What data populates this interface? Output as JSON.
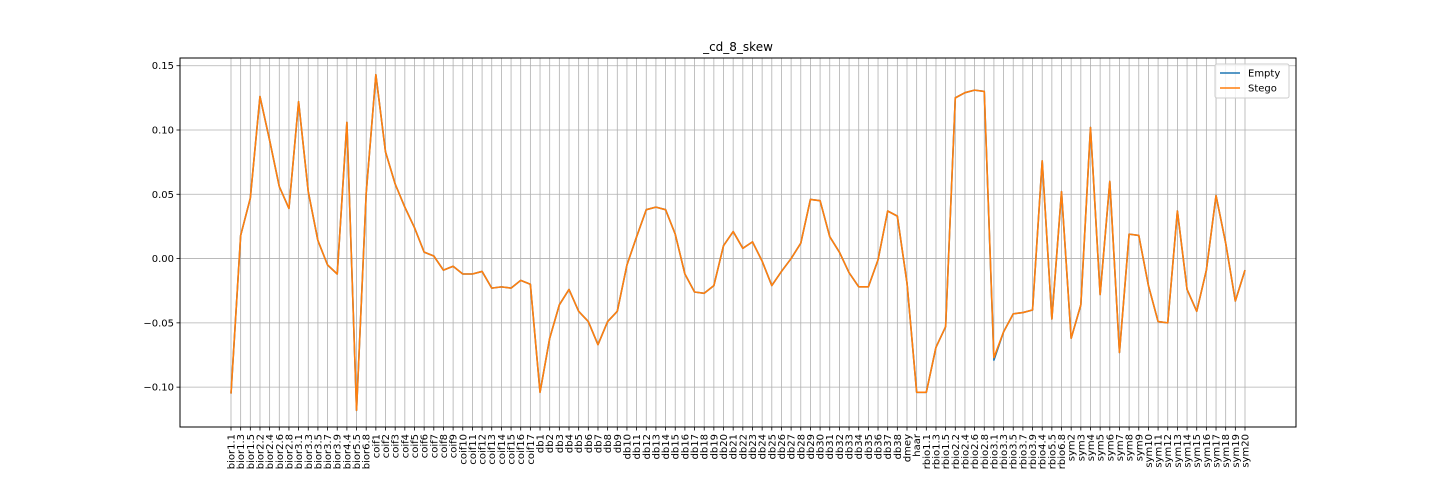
{
  "chart_data": {
    "type": "line",
    "title": "_cd_8_skew",
    "xlabel": "",
    "ylabel": "",
    "ylim": [
      -0.131,
      0.156
    ],
    "yticks": [
      -0.1,
      -0.05,
      0.0,
      0.05,
      0.1,
      0.15
    ],
    "ytick_labels": [
      "−0.10",
      "−0.05",
      "0.00",
      "0.05",
      "0.10",
      "0.15"
    ],
    "grid": true,
    "legend_position": "top-right",
    "categories": [
      "bior1.1",
      "bior1.3",
      "bior1.5",
      "bior2.2",
      "bior2.4",
      "bior2.6",
      "bior2.8",
      "bior3.1",
      "bior3.3",
      "bior3.5",
      "bior3.7",
      "bior3.9",
      "bior4.4",
      "bior5.5",
      "bior6.8",
      "coif1",
      "coif2",
      "coif3",
      "coif4",
      "coif5",
      "coif6",
      "coif7",
      "coif8",
      "coif9",
      "coif10",
      "coif11",
      "coif12",
      "coif13",
      "coif14",
      "coif15",
      "coif16",
      "coif17",
      "db1",
      "db2",
      "db3",
      "db4",
      "db5",
      "db6",
      "db7",
      "db8",
      "db9",
      "db10",
      "db11",
      "db12",
      "db13",
      "db14",
      "db15",
      "db16",
      "db17",
      "db18",
      "db19",
      "db20",
      "db21",
      "db22",
      "db23",
      "db24",
      "db25",
      "db26",
      "db27",
      "db28",
      "db29",
      "db30",
      "db31",
      "db32",
      "db33",
      "db34",
      "db35",
      "db36",
      "db37",
      "db38",
      "dmey",
      "haar",
      "rbio1.1",
      "rbio1.3",
      "rbio1.5",
      "rbio2.2",
      "rbio2.4",
      "rbio2.6",
      "rbio2.8",
      "rbio3.1",
      "rbio3.3",
      "rbio3.5",
      "rbio3.7",
      "rbio3.9",
      "rbio4.4",
      "rbio5.5",
      "rbio6.8",
      "sym2",
      "sym3",
      "sym4",
      "sym5",
      "sym6",
      "sym7",
      "sym8",
      "sym9",
      "sym10",
      "sym11",
      "sym12",
      "sym13",
      "sym14",
      "sym15",
      "sym16",
      "sym17",
      "sym18",
      "sym19",
      "sym20"
    ],
    "series": [
      {
        "name": "Empty",
        "color": "#1f77b4",
        "values": [
          -0.105,
          0.018,
          0.047,
          0.126,
          0.092,
          0.056,
          0.039,
          0.122,
          0.052,
          0.014,
          -0.005,
          -0.012,
          0.106,
          -0.118,
          0.051,
          0.143,
          0.083,
          0.058,
          0.04,
          0.024,
          0.005,
          0.002,
          -0.009,
          -0.006,
          -0.012,
          -0.012,
          -0.01,
          -0.023,
          -0.022,
          -0.023,
          -0.017,
          -0.02,
          -0.104,
          -0.062,
          -0.036,
          -0.024,
          -0.041,
          -0.049,
          -0.067,
          -0.049,
          -0.041,
          -0.005,
          0.017,
          0.038,
          0.04,
          0.038,
          0.019,
          -0.012,
          -0.026,
          -0.027,
          -0.021,
          0.01,
          0.021,
          0.008,
          0.013,
          -0.002,
          -0.021,
          -0.01,
          0.0,
          0.012,
          0.046,
          0.045,
          0.017,
          0.005,
          -0.011,
          -0.022,
          -0.022,
          -0.001,
          0.037,
          0.033,
          -0.019,
          -0.104,
          -0.104,
          -0.069,
          -0.053,
          0.125,
          0.129,
          0.131,
          0.13,
          -0.079,
          -0.057,
          -0.043,
          -0.042,
          -0.04,
          0.076,
          -0.047,
          0.052,
          -0.062,
          -0.036,
          0.102,
          -0.028,
          0.06,
          -0.073,
          0.019,
          0.018,
          -0.021,
          -0.049,
          -0.05,
          0.037,
          -0.024,
          -0.041,
          -0.009,
          0.049,
          0.012,
          -0.033,
          -0.009
        ]
      },
      {
        "name": "Stego",
        "color": "#ff7f0e",
        "values": [
          -0.105,
          0.018,
          0.047,
          0.126,
          0.092,
          0.056,
          0.039,
          0.122,
          0.052,
          0.014,
          -0.005,
          -0.012,
          0.106,
          -0.118,
          0.051,
          0.143,
          0.083,
          0.058,
          0.04,
          0.024,
          0.005,
          0.002,
          -0.009,
          -0.006,
          -0.012,
          -0.012,
          -0.01,
          -0.023,
          -0.022,
          -0.023,
          -0.017,
          -0.02,
          -0.104,
          -0.062,
          -0.036,
          -0.024,
          -0.041,
          -0.049,
          -0.067,
          -0.049,
          -0.041,
          -0.005,
          0.017,
          0.038,
          0.04,
          0.038,
          0.019,
          -0.012,
          -0.026,
          -0.027,
          -0.021,
          0.01,
          0.021,
          0.008,
          0.013,
          -0.002,
          -0.021,
          -0.01,
          0.0,
          0.012,
          0.046,
          0.045,
          0.017,
          0.005,
          -0.011,
          -0.022,
          -0.022,
          -0.001,
          0.037,
          0.033,
          -0.019,
          -0.104,
          -0.104,
          -0.069,
          -0.053,
          0.125,
          0.129,
          0.131,
          0.13,
          -0.077,
          -0.057,
          -0.043,
          -0.042,
          -0.04,
          0.076,
          -0.047,
          0.052,
          -0.062,
          -0.036,
          0.102,
          -0.028,
          0.06,
          -0.073,
          0.019,
          0.018,
          -0.021,
          -0.049,
          -0.05,
          0.037,
          -0.024,
          -0.041,
          -0.009,
          0.049,
          0.012,
          -0.033,
          -0.009
        ]
      }
    ]
  }
}
